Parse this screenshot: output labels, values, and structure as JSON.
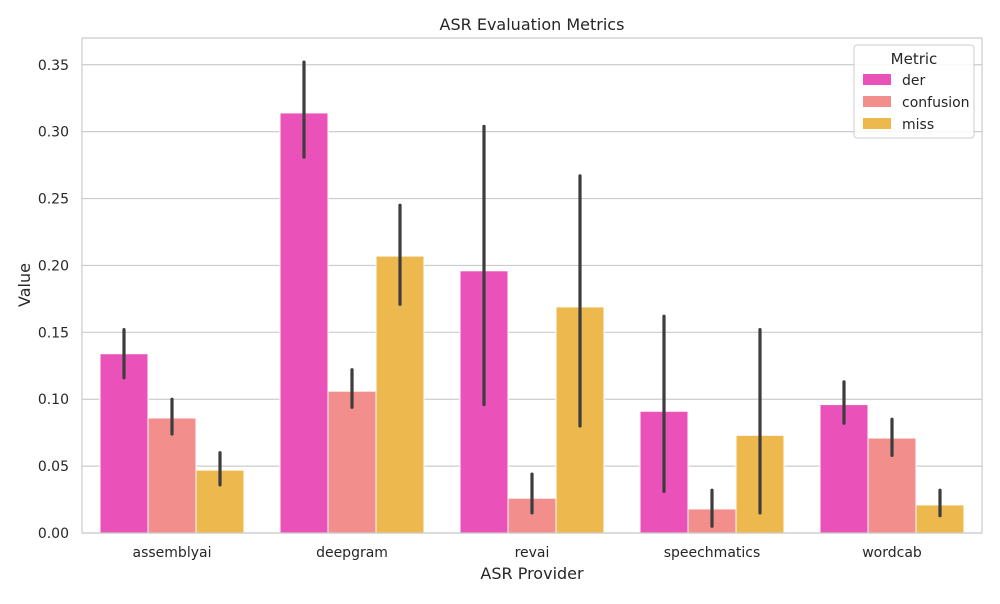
{
  "chart_data": {
    "type": "bar",
    "title": "ASR Evaluation Metrics",
    "xlabel": "ASR Provider",
    "ylabel": "Value",
    "ylim": [
      0,
      0.37
    ],
    "yticks": [
      0.0,
      0.05,
      0.1,
      0.15,
      0.2,
      0.25,
      0.3,
      0.35
    ],
    "ytick_labels": [
      "0.00",
      "0.05",
      "0.10",
      "0.15",
      "0.20",
      "0.25",
      "0.30",
      "0.35"
    ],
    "grid": true,
    "legend_title": "Metric",
    "legend_position": "top-right",
    "categories": [
      "assemblyai",
      "deepgram",
      "revai",
      "speechmatics",
      "wordcab"
    ],
    "series": [
      {
        "name": "der",
        "color": "#EB52B9",
        "values": [
          0.134,
          0.314,
          0.196,
          0.091,
          0.096
        ],
        "err_low": [
          0.116,
          0.281,
          0.096,
          0.031,
          0.082
        ],
        "err_high": [
          0.152,
          0.352,
          0.304,
          0.162,
          0.113
        ]
      },
      {
        "name": "confusion",
        "color": "#F28E8B",
        "values": [
          0.086,
          0.106,
          0.026,
          0.018,
          0.071
        ],
        "err_low": [
          0.074,
          0.094,
          0.015,
          0.005,
          0.058
        ],
        "err_high": [
          0.1,
          0.122,
          0.044,
          0.032,
          0.085
        ]
      },
      {
        "name": "miss",
        "color": "#EDB94F",
        "values": [
          0.047,
          0.207,
          0.169,
          0.073,
          0.021
        ],
        "err_low": [
          0.036,
          0.171,
          0.08,
          0.015,
          0.013
        ],
        "err_high": [
          0.06,
          0.245,
          0.267,
          0.152,
          0.032
        ]
      }
    ]
  }
}
